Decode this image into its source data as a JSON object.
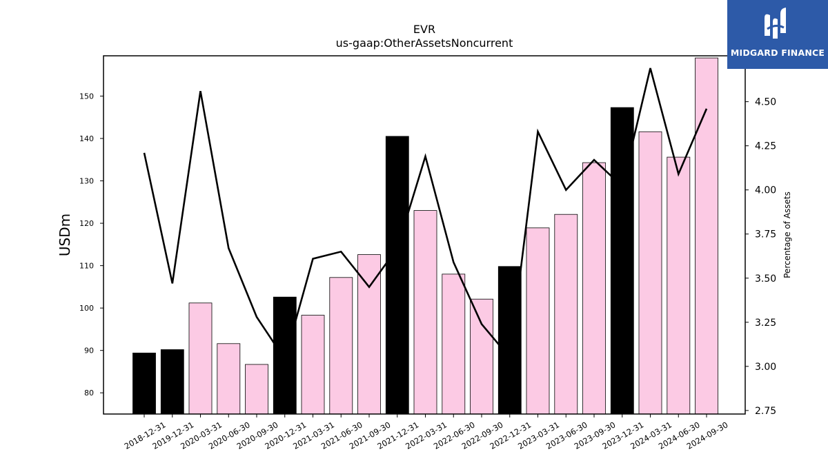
{
  "brand": {
    "name": "MIDGARD FINANCE",
    "logo_icon": "midgard-m-logo-icon",
    "color": "#2d5aa8"
  },
  "chart_data": {
    "type": "bar+line",
    "title": "EVR",
    "subtitle": "us-gaap:OtherAssetsNoncurrent",
    "ylabel": "USDm",
    "ylabel_right": "Percentage of Assets",
    "ylim": [
      75,
      159.5
    ],
    "ylim_right": [
      2.73,
      4.76
    ],
    "yticks": [
      80,
      90,
      100,
      110,
      120,
      130,
      140,
      150
    ],
    "yticks_right": [
      "2.75",
      "3.00",
      "3.25",
      "3.50",
      "3.75",
      "4.00",
      "4.25",
      "4.50"
    ],
    "categories": [
      "2018-12-31",
      "2019-12-31",
      "2020-03-31",
      "2020-06-30",
      "2020-09-30",
      "2020-12-31",
      "2021-03-31",
      "2021-06-30",
      "2021-09-30",
      "2021-12-31",
      "2022-03-31",
      "2022-06-30",
      "2022-09-30",
      "2022-12-31",
      "2023-03-31",
      "2023-06-30",
      "2023-09-30",
      "2023-12-31",
      "2024-03-31",
      "2024-06-30",
      "2024-09-30"
    ],
    "series": [
      {
        "type": "bar",
        "values": [
          89.4,
          90.2,
          101.2,
          91.6,
          86.7,
          102.6,
          98.3,
          107.2,
          112.6,
          140.5,
          123.0,
          108.0,
          102.1,
          109.8,
          118.9,
          122.1,
          134.3,
          147.3,
          141.6,
          135.6,
          159.0
        ],
        "annual_color": "#000000",
        "quarterly_color": "#fccae4",
        "is_annual": [
          true,
          true,
          false,
          false,
          false,
          true,
          false,
          false,
          false,
          true,
          false,
          false,
          false,
          true,
          false,
          false,
          false,
          true,
          false,
          false,
          false
        ]
      },
      {
        "type": "line",
        "axis": "right",
        "color": "#000000",
        "values": [
          4.21,
          3.47,
          4.56,
          3.67,
          3.28,
          3.04,
          3.61,
          3.65,
          3.45,
          3.67,
          4.19,
          3.59,
          3.24,
          3.05,
          4.33,
          4.0,
          4.17,
          4.02,
          4.69,
          4.09,
          4.46
        ]
      }
    ],
    "grid": false,
    "legend": "none"
  }
}
